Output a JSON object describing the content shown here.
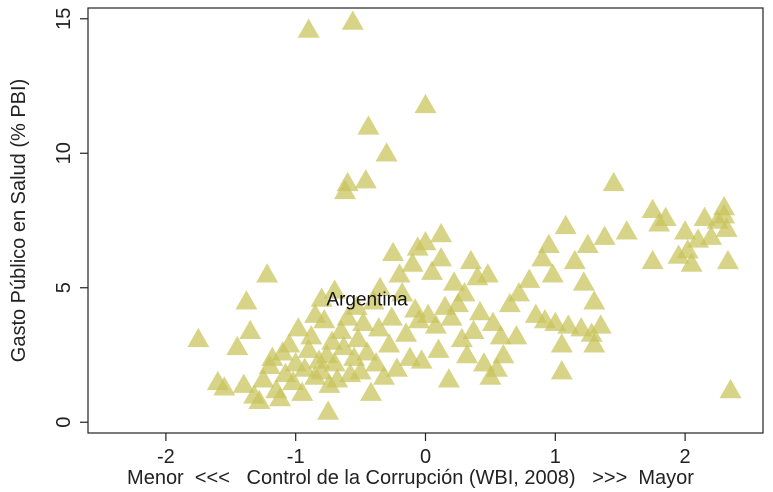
{
  "chart_data": {
    "type": "scatter",
    "title": "",
    "xlabel": "Menor  <<<   Control de la Corrupción (WBI, 2008)   >>>  Mayor",
    "ylabel": "Gasto Público en Salud (% PBI)",
    "xlim": [
      -2.6,
      2.6
    ],
    "ylim": [
      -0.4,
      15.4
    ],
    "xticks": [
      -2,
      -1,
      0,
      1,
      2
    ],
    "yticks": [
      0,
      5,
      10,
      15
    ],
    "xtick_labels": [
      "-2",
      "-1",
      "0",
      "1",
      "2"
    ],
    "ytick_labels": [
      "0",
      "5",
      "10",
      "15"
    ],
    "marker": "triangle",
    "marker_color": "#c8c35a",
    "marker_opacity": 0.72,
    "grid": false,
    "annotations": [
      {
        "text": "Argentina",
        "x": -0.45,
        "y": 4.6
      }
    ],
    "points": [
      [
        -1.75,
        3.1
      ],
      [
        -1.6,
        1.5
      ],
      [
        -1.55,
        1.3
      ],
      [
        -1.45,
        2.8
      ],
      [
        -1.4,
        1.4
      ],
      [
        -1.38,
        4.5
      ],
      [
        -1.35,
        3.4
      ],
      [
        -1.32,
        1.0
      ],
      [
        -1.28,
        0.8
      ],
      [
        -1.25,
        1.6
      ],
      [
        -1.22,
        5.5
      ],
      [
        -1.2,
        2.1
      ],
      [
        -1.18,
        2.4
      ],
      [
        -1.15,
        1.2
      ],
      [
        -1.12,
        0.9
      ],
      [
        -1.1,
        2.6
      ],
      [
        -1.08,
        1.8
      ],
      [
        -1.05,
        2.9
      ],
      [
        -1.02,
        1.5
      ],
      [
        -1.0,
        2.2
      ],
      [
        -0.98,
        3.5
      ],
      [
        -0.95,
        1.1
      ],
      [
        -0.93,
        2.0
      ],
      [
        -0.9,
        14.6
      ],
      [
        -0.9,
        2.7
      ],
      [
        -0.88,
        3.2
      ],
      [
        -0.85,
        1.7
      ],
      [
        -0.85,
        4.0
      ],
      [
        -0.82,
        2.3
      ],
      [
        -0.8,
        4.6
      ],
      [
        -0.8,
        1.9
      ],
      [
        -0.78,
        3.8
      ],
      [
        -0.76,
        2.5
      ],
      [
        -0.75,
        0.4
      ],
      [
        -0.74,
        1.4
      ],
      [
        -0.72,
        3.0
      ],
      [
        -0.7,
        4.9
      ],
      [
        -0.7,
        2.2
      ],
      [
        -0.68,
        1.6
      ],
      [
        -0.65,
        3.4
      ],
      [
        -0.63,
        2.8
      ],
      [
        -0.62,
        8.6
      ],
      [
        -0.6,
        8.9
      ],
      [
        -0.6,
        3.9
      ],
      [
        -0.58,
        1.8
      ],
      [
        -0.56,
        14.9
      ],
      [
        -0.55,
        2.4
      ],
      [
        -0.53,
        4.3
      ],
      [
        -0.52,
        3.1
      ],
      [
        -0.5,
        1.9
      ],
      [
        -0.48,
        3.7
      ],
      [
        -0.46,
        9.0
      ],
      [
        -0.45,
        2.6
      ],
      [
        -0.44,
        11.0
      ],
      [
        -0.42,
        1.1
      ],
      [
        -0.4,
        4.5
      ],
      [
        -0.38,
        2.2
      ],
      [
        -0.36,
        3.5
      ],
      [
        -0.35,
        5.0
      ],
      [
        -0.32,
        1.7
      ],
      [
        -0.3,
        10.0
      ],
      [
        -0.28,
        2.9
      ],
      [
        -0.26,
        3.9
      ],
      [
        -0.25,
        6.3
      ],
      [
        -0.22,
        2.0
      ],
      [
        -0.2,
        5.5
      ],
      [
        -0.18,
        4.8
      ],
      [
        -0.15,
        3.3
      ],
      [
        -0.12,
        2.4
      ],
      [
        -0.1,
        5.9
      ],
      [
        -0.08,
        4.2
      ],
      [
        -0.06,
        6.5
      ],
      [
        -0.05,
        3.8
      ],
      [
        -0.03,
        2.3
      ],
      [
        0.0,
        6.7
      ],
      [
        0.0,
        11.8
      ],
      [
        0.02,
        4.0
      ],
      [
        0.05,
        5.6
      ],
      [
        0.08,
        3.6
      ],
      [
        0.1,
        2.7
      ],
      [
        0.12,
        6.1
      ],
      [
        0.12,
        7.0
      ],
      [
        0.15,
        4.3
      ],
      [
        0.18,
        1.6
      ],
      [
        0.2,
        3.9
      ],
      [
        0.22,
        5.2
      ],
      [
        0.25,
        4.4
      ],
      [
        0.28,
        3.1
      ],
      [
        0.3,
        4.8
      ],
      [
        0.32,
        2.5
      ],
      [
        0.35,
        6.0
      ],
      [
        0.37,
        3.4
      ],
      [
        0.4,
        5.4
      ],
      [
        0.42,
        4.1
      ],
      [
        0.45,
        2.2
      ],
      [
        0.48,
        5.5
      ],
      [
        0.5,
        1.7
      ],
      [
        0.52,
        3.7
      ],
      [
        0.55,
        2.0
      ],
      [
        0.58,
        3.2
      ],
      [
        0.6,
        2.5
      ],
      [
        0.65,
        4.4
      ],
      [
        0.7,
        3.2
      ],
      [
        0.72,
        4.8
      ],
      [
        0.8,
        5.3
      ],
      [
        0.85,
        4.0
      ],
      [
        0.9,
        6.1
      ],
      [
        0.92,
        3.8
      ],
      [
        0.95,
        6.6
      ],
      [
        0.98,
        5.5
      ],
      [
        1.0,
        3.7
      ],
      [
        1.05,
        2.9
      ],
      [
        1.05,
        1.9
      ],
      [
        1.08,
        7.3
      ],
      [
        1.1,
        3.6
      ],
      [
        1.15,
        6.0
      ],
      [
        1.2,
        3.5
      ],
      [
        1.22,
        5.2
      ],
      [
        1.25,
        6.6
      ],
      [
        1.28,
        3.3
      ],
      [
        1.3,
        4.5
      ],
      [
        1.3,
        2.9
      ],
      [
        1.35,
        3.6
      ],
      [
        1.38,
        6.9
      ],
      [
        1.45,
        8.9
      ],
      [
        1.55,
        7.1
      ],
      [
        1.75,
        7.9
      ],
      [
        1.75,
        6.0
      ],
      [
        1.8,
        7.4
      ],
      [
        1.85,
        7.6
      ],
      [
        1.95,
        6.2
      ],
      [
        2.0,
        7.1
      ],
      [
        2.02,
        6.4
      ],
      [
        2.05,
        5.9
      ],
      [
        2.1,
        6.8
      ],
      [
        2.15,
        7.6
      ],
      [
        2.2,
        6.9
      ],
      [
        2.25,
        7.5
      ],
      [
        2.3,
        8.0
      ],
      [
        2.32,
        7.2
      ],
      [
        2.33,
        6.0
      ],
      [
        2.35,
        1.2
      ],
      [
        2.3,
        7.7
      ]
    ]
  }
}
